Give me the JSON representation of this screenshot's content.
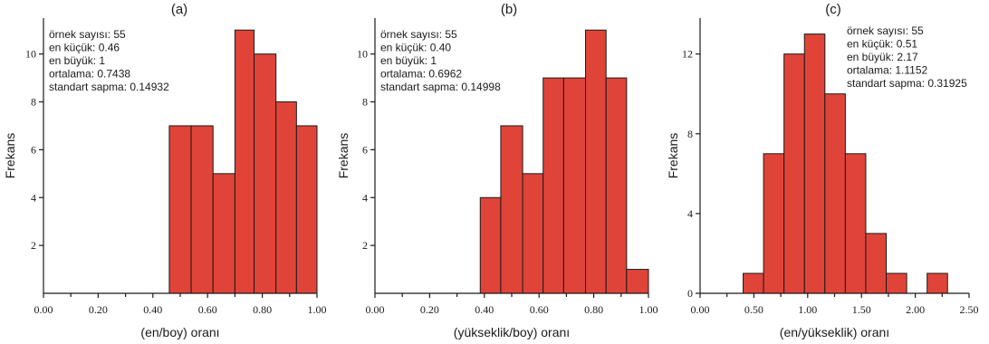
{
  "colors": {
    "bar_fill": "#e04438",
    "axis": "#1a1a1a"
  },
  "chart_data": [
    {
      "type": "bar",
      "title": "(a)",
      "xlabel": "(en/boy) oranı",
      "ylabel": "Frekans",
      "xlim": [
        0,
        1.0
      ],
      "ylim": [
        0,
        11.5
      ],
      "xticks": [
        {
          "value": 0.0,
          "label": "0.00"
        },
        {
          "value": 0.2,
          "label": "0.20"
        },
        {
          "value": 0.4,
          "label": "0.40"
        },
        {
          "value": 0.6,
          "label": "0.60"
        },
        {
          "value": 0.8,
          "label": "0.80"
        },
        {
          "value": 1.0,
          "label": "1.00"
        }
      ],
      "minor_xticks": [
        0.1,
        0.3,
        0.5,
        0.7,
        0.9
      ],
      "yticks": [
        {
          "value": 2,
          "label": "2"
        },
        {
          "value": 4,
          "label": "4"
        },
        {
          "value": 6,
          "label": "6"
        },
        {
          "value": 8,
          "label": "8"
        },
        {
          "value": 10,
          "label": "10"
        }
      ],
      "bins": [
        {
          "x0": 0.46,
          "x1": 0.54,
          "count": 7
        },
        {
          "x0": 0.54,
          "x1": 0.62,
          "count": 7
        },
        {
          "x0": 0.62,
          "x1": 0.7,
          "count": 5
        },
        {
          "x0": 0.7,
          "x1": 0.77,
          "count": 11
        },
        {
          "x0": 0.77,
          "x1": 0.85,
          "count": 10
        },
        {
          "x0": 0.85,
          "x1": 0.925,
          "count": 8
        },
        {
          "x0": 0.925,
          "x1": 1.0,
          "count": 7
        }
      ],
      "stats": [
        "örnek sayısı: 55",
        "en küçük: 0.46",
        "en büyük: 1",
        "ortalama: 0.7438",
        "standart sapma: 0.14932"
      ]
    },
    {
      "type": "bar",
      "title": "(b)",
      "xlabel": "(yükseklik/boy) oranı",
      "ylabel": "Frekans",
      "xlim": [
        0,
        1.0
      ],
      "ylim": [
        0,
        11.5
      ],
      "xticks": [
        {
          "value": 0.0,
          "label": "0.00"
        },
        {
          "value": 0.2,
          "label": "0.20"
        },
        {
          "value": 0.4,
          "label": "0.40"
        },
        {
          "value": 0.6,
          "label": "0.60"
        },
        {
          "value": 0.8,
          "label": "0.80"
        },
        {
          "value": 1.0,
          "label": "1.00"
        }
      ],
      "minor_xticks": [
        0.1,
        0.3,
        0.5,
        0.7,
        0.9
      ],
      "yticks": [
        {
          "value": 2,
          "label": "2"
        },
        {
          "value": 4,
          "label": "4"
        },
        {
          "value": 6,
          "label": "6"
        },
        {
          "value": 8,
          "label": "8"
        },
        {
          "value": 10,
          "label": "10"
        }
      ],
      "bins": [
        {
          "x0": 0.385,
          "x1": 0.46,
          "count": 4
        },
        {
          "x0": 0.46,
          "x1": 0.54,
          "count": 7
        },
        {
          "x0": 0.54,
          "x1": 0.615,
          "count": 5
        },
        {
          "x0": 0.615,
          "x1": 0.69,
          "count": 9
        },
        {
          "x0": 0.69,
          "x1": 0.77,
          "count": 9
        },
        {
          "x0": 0.77,
          "x1": 0.845,
          "count": 11
        },
        {
          "x0": 0.845,
          "x1": 0.92,
          "count": 9
        },
        {
          "x0": 0.92,
          "x1": 1.0,
          "count": 1
        }
      ],
      "stats": [
        "örnek sayısı: 55",
        "en küçük: 0.40",
        "en büyük: 1",
        "ortalama: 0.6962",
        "standart sapma: 0.14998"
      ]
    },
    {
      "type": "bar",
      "title": "(c)",
      "xlabel": "(en/yükseklik) oranı",
      "ylabel": "Frekans",
      "xlim": [
        0,
        2.5
      ],
      "ylim": [
        0,
        13.8
      ],
      "xticks": [
        {
          "value": 0.0,
          "label": "0.00"
        },
        {
          "value": 0.5,
          "label": "0.50"
        },
        {
          "value": 1.0,
          "label": "1.00"
        },
        {
          "value": 1.5,
          "label": "1.50"
        },
        {
          "value": 2.0,
          "label": "2.00"
        },
        {
          "value": 2.5,
          "label": "2.50"
        }
      ],
      "minor_xticks": [
        0.25,
        0.75,
        1.25,
        1.75,
        2.25
      ],
      "yticks": [
        {
          "value": 0,
          "label": "0"
        },
        {
          "value": 4,
          "label": "4"
        },
        {
          "value": 8,
          "label": "8"
        },
        {
          "value": 12,
          "label": "12"
        }
      ],
      "bins": [
        {
          "x0": 0.4,
          "x1": 0.59,
          "count": 1
        },
        {
          "x0": 0.59,
          "x1": 0.78,
          "count": 7
        },
        {
          "x0": 0.78,
          "x1": 0.97,
          "count": 12
        },
        {
          "x0": 0.97,
          "x1": 1.16,
          "count": 13
        },
        {
          "x0": 1.16,
          "x1": 1.35,
          "count": 10
        },
        {
          "x0": 1.35,
          "x1": 1.54,
          "count": 7
        },
        {
          "x0": 1.54,
          "x1": 1.73,
          "count": 3
        },
        {
          "x0": 1.73,
          "x1": 1.92,
          "count": 1
        },
        {
          "x0": 2.11,
          "x1": 2.3,
          "count": 1
        }
      ],
      "stats": [
        "örnek sayısı: 55",
        "en küçük: 0.51",
        "en büyük: 2.17",
        "ortalama: 1.1152",
        "standart sapma: 0.31925"
      ]
    }
  ]
}
